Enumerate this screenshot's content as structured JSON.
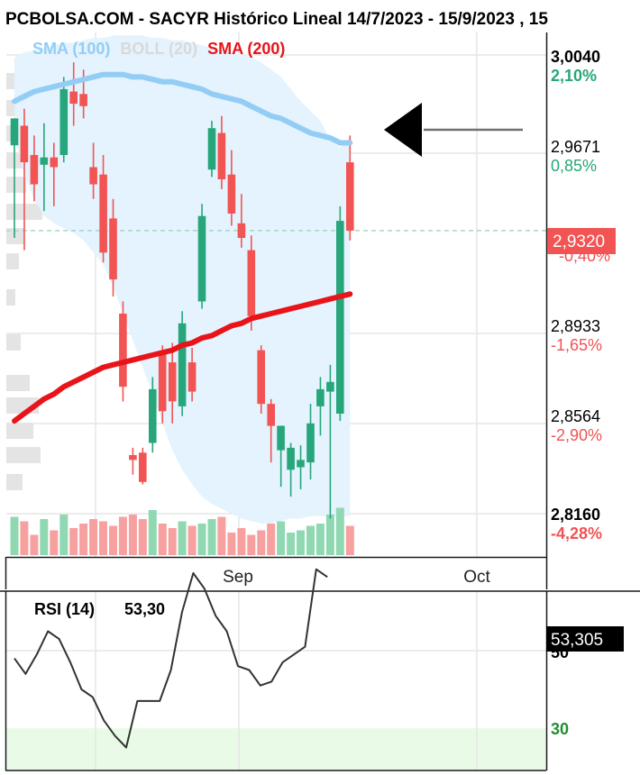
{
  "header": {
    "title": "PCBOLSA.COM - SACYR Histórico Lineal 14/7/2023 - 15/9/2023 , 15"
  },
  "legend": {
    "sma100": "SMA (100)",
    "boll": "BOLL (20)",
    "sma200": "SMA (200)"
  },
  "colors": {
    "up": "#26a67a",
    "down": "#f25454",
    "sma100": "#93cdf6",
    "sma200": "#e8141a",
    "boll_fill": "#e3f2fd",
    "rsi_band": "#e9fbe7",
    "current_price_bg": "#f25454"
  },
  "price_axis": {
    "levels": [
      {
        "price": "3,0040",
        "pct": "2,10%",
        "dir": "pos",
        "bold": true
      },
      {
        "price": "2,9671",
        "pct": "0,85%",
        "dir": "pos",
        "bold": false
      },
      {
        "price": "2,8933",
        "pct": "-1,65%",
        "dir": "neg",
        "bold": false
      },
      {
        "price": "2,8564",
        "pct": "-2,90%",
        "dir": "neg",
        "bold": false
      },
      {
        "price": "2,8160",
        "pct": "-4,28%",
        "dir": "neg",
        "bold": true
      }
    ],
    "current_price": "2,9320",
    "current_pct": "-0,40%"
  },
  "x_axis": {
    "labels": [
      "Sep",
      "Oct"
    ]
  },
  "rsi": {
    "label": "RSI (14)",
    "value": "53,30",
    "current_value": "53,305",
    "level_label": "30",
    "hidden_level_label": "50"
  },
  "chart_data": {
    "type": "candlestick",
    "title": "PCBOLSA.COM - SACYR Histórico Lineal 14/7/2023 - 15/9/2023 , 15",
    "ylim": [
      2.805,
      3.0125
    ],
    "candles": [
      {
        "o": 2.967,
        "h": 2.977,
        "l": 2.929,
        "c": 2.978
      },
      {
        "o": 2.975,
        "h": 2.982,
        "l": 2.924,
        "c": 2.96
      },
      {
        "o": 2.963,
        "h": 2.971,
        "l": 2.944,
        "c": 2.951
      },
      {
        "o": 2.959,
        "h": 2.976,
        "l": 2.94,
        "c": 2.962
      },
      {
        "o": 2.962,
        "h": 2.968,
        "l": 2.942,
        "c": 2.958
      },
      {
        "o": 2.963,
        "h": 2.995,
        "l": 2.96,
        "c": 2.99
      },
      {
        "o": 2.989,
        "h": 3.001,
        "l": 2.975,
        "c": 2.984
      },
      {
        "o": 2.988,
        "h": 2.998,
        "l": 2.978,
        "c": 2.983
      },
      {
        "o": 2.958,
        "h": 2.968,
        "l": 2.945,
        "c": 2.951
      },
      {
        "o": 2.955,
        "h": 2.963,
        "l": 2.919,
        "c": 2.923
      },
      {
        "o": 2.937,
        "h": 2.945,
        "l": 2.905,
        "c": 2.912
      },
      {
        "o": 2.898,
        "h": 2.903,
        "l": 2.862,
        "c": 2.868
      },
      {
        "o": 2.84,
        "h": 2.843,
        "l": 2.832,
        "c": 2.838
      },
      {
        "o": 2.841,
        "h": 2.843,
        "l": 2.828,
        "c": 2.829
      },
      {
        "o": 2.845,
        "h": 2.872,
        "l": 2.841,
        "c": 2.867
      },
      {
        "o": 2.882,
        "h": 2.885,
        "l": 2.853,
        "c": 2.858
      },
      {
        "o": 2.878,
        "h": 2.886,
        "l": 2.853,
        "c": 2.862
      },
      {
        "o": 2.86,
        "h": 2.899,
        "l": 2.856,
        "c": 2.894
      },
      {
        "o": 2.878,
        "h": 2.884,
        "l": 2.862,
        "c": 2.866
      },
      {
        "o": 2.903,
        "h": 2.943,
        "l": 2.9,
        "c": 2.938
      },
      {
        "o": 2.957,
        "h": 2.977,
        "l": 2.954,
        "c": 2.974
      },
      {
        "o": 2.972,
        "h": 2.979,
        "l": 2.949,
        "c": 2.953
      },
      {
        "o": 2.955,
        "h": 2.965,
        "l": 2.934,
        "c": 2.939
      },
      {
        "o": 2.935,
        "h": 2.947,
        "l": 2.925,
        "c": 2.929
      },
      {
        "o": 2.924,
        "h": 2.93,
        "l": 2.891,
        "c": 2.897
      },
      {
        "o": 2.883,
        "h": 2.885,
        "l": 2.857,
        "c": 2.861
      },
      {
        "o": 2.861,
        "h": 2.863,
        "l": 2.837,
        "c": 2.852
      },
      {
        "o": 2.842,
        "h": 2.852,
        "l": 2.827,
        "c": 2.852
      },
      {
        "o": 2.834,
        "h": 2.845,
        "l": 2.823,
        "c": 2.843
      },
      {
        "o": 2.835,
        "h": 2.844,
        "l": 2.826,
        "c": 2.838
      },
      {
        "o": 2.837,
        "h": 2.861,
        "l": 2.83,
        "c": 2.853
      },
      {
        "o": 2.86,
        "h": 2.872,
        "l": 2.848,
        "c": 2.867
      },
      {
        "o": 2.866,
        "h": 2.877,
        "l": 2.814,
        "c": 2.87
      },
      {
        "o": 2.857,
        "h": 2.942,
        "l": 2.854,
        "c": 2.936
      },
      {
        "o": 2.96,
        "h": 2.971,
        "l": 2.928,
        "c": 2.932
      }
    ],
    "volumes_relative": [
      0.85,
      0.75,
      0.45,
      0.8,
      0.55,
      0.9,
      0.6,
      0.7,
      0.8,
      0.75,
      0.65,
      0.85,
      0.9,
      0.8,
      1.0,
      0.7,
      0.6,
      0.75,
      0.65,
      0.7,
      0.8,
      0.85,
      0.5,
      0.6,
      0.45,
      0.55,
      0.7,
      0.75,
      0.5,
      0.55,
      0.65,
      0.7,
      0.9,
      1.05,
      0.65
    ],
    "sma100": [
      2.985,
      2.987,
      2.989,
      2.99,
      2.991,
      2.992,
      2.993,
      2.994,
      2.995,
      2.996,
      2.996,
      2.996,
      2.995,
      2.995,
      2.994,
      2.993,
      2.993,
      2.992,
      2.991,
      2.99,
      2.988,
      2.987,
      2.986,
      2.985,
      2.983,
      2.981,
      2.979,
      2.978,
      2.976,
      2.974,
      2.972,
      2.971,
      2.97,
      2.968,
      2.968
    ],
    "sma200": [
      2.854,
      2.857,
      2.86,
      2.863,
      2.865,
      2.868,
      2.87,
      2.872,
      2.874,
      2.876,
      2.877,
      2.878,
      2.879,
      2.88,
      2.881,
      2.882,
      2.883,
      2.885,
      2.886,
      2.888,
      2.889,
      2.891,
      2.893,
      2.894,
      2.896,
      2.897,
      2.898,
      2.899,
      2.9,
      2.901,
      2.902,
      2.903,
      2.904,
      2.905,
      2.906
    ],
    "boll_upper": [
      3.003,
      3.005,
      3.006,
      3.007,
      3.008,
      3.009,
      3.009,
      3.01,
      3.011,
      3.011,
      3.012,
      3.012,
      3.012,
      3.012,
      3.011,
      3.011,
      3.01,
      3.01,
      3.009,
      3.008,
      3.007,
      3.006,
      3.005,
      3.004,
      3.003,
      3.001,
      2.998,
      2.995,
      2.99,
      2.985,
      2.981,
      2.977,
      2.969,
      2.966,
      2.97
    ],
    "boll_lower": [
      2.972,
      2.955,
      2.945,
      2.938,
      2.935,
      2.933,
      2.931,
      2.928,
      2.923,
      2.918,
      2.909,
      2.898,
      2.887,
      2.876,
      2.865,
      2.853,
      2.842,
      2.834,
      2.828,
      2.823,
      2.82,
      2.818,
      2.816,
      2.814,
      2.813,
      2.812,
      2.812,
      2.813,
      2.814,
      2.814,
      2.815,
      2.815,
      2.815,
      2.815,
      2.815
    ],
    "rsi_values": [
      48,
      44,
      49,
      55,
      53,
      47,
      40,
      38,
      32,
      28,
      25,
      37,
      37,
      37,
      45,
      60,
      70,
      66,
      59,
      55,
      46,
      45,
      41,
      42,
      47,
      49,
      51,
      71,
      69
    ],
    "rsi_ylim": [
      20,
      80
    ],
    "x_tick_labels": [
      "Sep",
      "Oct"
    ]
  }
}
